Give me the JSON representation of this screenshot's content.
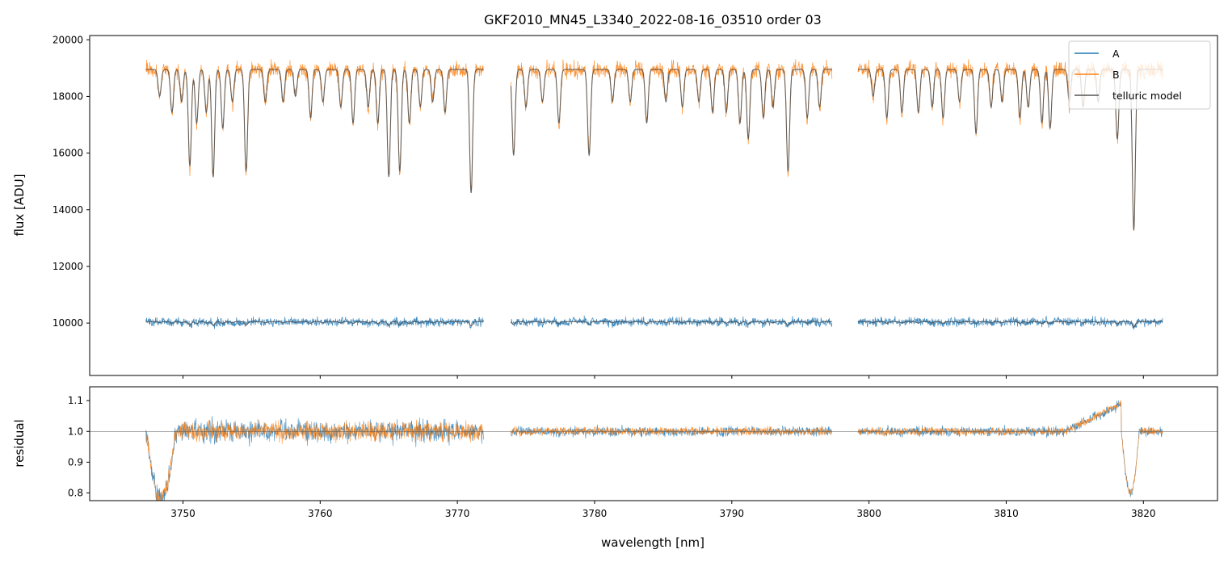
{
  "chart_data": {
    "type": "line",
    "title": "GKF2010_MN45_L3340_2022-08-16_03510  order 03",
    "xlabel": "wavelength [nm]",
    "xlim": [
      3743.2,
      3825.4
    ],
    "xticks": [
      3750,
      3760,
      3770,
      3780,
      3790,
      3800,
      3810,
      3820
    ],
    "xtick_labels": [
      "3750",
      "3760",
      "3770",
      "3780",
      "3790",
      "3800",
      "3810",
      "3820"
    ],
    "colors": {
      "A": "#1f77b4",
      "B": "#ff7f0e",
      "model": "#555555"
    },
    "segments": [
      [
        3747.3,
        3771.9
      ],
      [
        3773.9,
        3797.3
      ],
      [
        3799.2,
        3821.4
      ]
    ],
    "top": {
      "ylabel": "flux [ADU]",
      "ylim": [
        8150,
        20150
      ],
      "yticks": [
        10000,
        12000,
        14000,
        16000,
        18000,
        20000
      ],
      "ytick_labels": [
        "10000",
        "12000",
        "14000",
        "16000",
        "18000",
        "20000"
      ],
      "continuum": {
        "A": 10050,
        "B": 18950
      },
      "telluric_lines": [
        [
          3748.3,
          0.05
        ],
        [
          3749.2,
          0.08
        ],
        [
          3749.9,
          0.06
        ],
        [
          3750.5,
          0.18
        ],
        [
          3751.0,
          0.1
        ],
        [
          3751.7,
          0.08
        ],
        [
          3752.2,
          0.2
        ],
        [
          3752.9,
          0.11
        ],
        [
          3753.6,
          0.06
        ],
        [
          3754.6,
          0.19
        ],
        [
          3756.0,
          0.06
        ],
        [
          3757.3,
          0.06
        ],
        [
          3758.2,
          0.05
        ],
        [
          3759.3,
          0.09
        ],
        [
          3760.2,
          0.06
        ],
        [
          3761.5,
          0.07
        ],
        [
          3762.4,
          0.1
        ],
        [
          3763.5,
          0.07
        ],
        [
          3764.2,
          0.1
        ],
        [
          3765.0,
          0.2
        ],
        [
          3765.8,
          0.19
        ],
        [
          3766.5,
          0.1
        ],
        [
          3767.3,
          0.07
        ],
        [
          3768.2,
          0.06
        ],
        [
          3769.1,
          0.08
        ],
        [
          3771.0,
          0.23
        ],
        [
          3774.1,
          0.16
        ],
        [
          3775.0,
          0.07
        ],
        [
          3776.2,
          0.06
        ],
        [
          3777.4,
          0.1
        ],
        [
          3779.6,
          0.16
        ],
        [
          3781.3,
          0.06
        ],
        [
          3782.6,
          0.06
        ],
        [
          3783.8,
          0.1
        ],
        [
          3785.2,
          0.06
        ],
        [
          3786.4,
          0.07
        ],
        [
          3787.6,
          0.06
        ],
        [
          3788.6,
          0.08
        ],
        [
          3789.6,
          0.08
        ],
        [
          3790.6,
          0.1
        ],
        [
          3791.2,
          0.13
        ],
        [
          3792.3,
          0.09
        ],
        [
          3793.0,
          0.07
        ],
        [
          3794.1,
          0.19
        ],
        [
          3795.5,
          0.09
        ],
        [
          3796.4,
          0.07
        ],
        [
          3800.3,
          0.05
        ],
        [
          3801.3,
          0.09
        ],
        [
          3802.4,
          0.08
        ],
        [
          3803.6,
          0.08
        ],
        [
          3804.6,
          0.07
        ],
        [
          3805.4,
          0.09
        ],
        [
          3806.6,
          0.06
        ],
        [
          3807.8,
          0.12
        ],
        [
          3808.9,
          0.07
        ],
        [
          3809.7,
          0.06
        ],
        [
          3811.0,
          0.09
        ],
        [
          3811.6,
          0.07
        ],
        [
          3812.6,
          0.1
        ],
        [
          3813.2,
          0.11
        ],
        [
          3814.6,
          0.06
        ],
        [
          3815.6,
          0.07
        ],
        [
          3816.7,
          0.06
        ],
        [
          3818.1,
          0.13
        ],
        [
          3819.3,
          0.3
        ]
      ]
    },
    "bottom": {
      "ylabel": "residual",
      "ylim": [
        0.775,
        1.145
      ],
      "yticks": [
        0.8,
        0.9,
        1.0,
        1.1
      ],
      "ytick_labels": [
        "0.8",
        "0.9",
        "1.0",
        "1.1"
      ],
      "reference_line": 1.0,
      "noise_amplitude": [
        [
          3747.3,
          3771.9,
          0.04
        ],
        [
          3773.9,
          3797.3,
          0.018
        ],
        [
          3799.2,
          3821.4,
          0.018
        ]
      ]
    },
    "legend": {
      "location": "upper right",
      "entries": [
        {
          "label": "A",
          "color": "#1f77b4"
        },
        {
          "label": "B",
          "color": "#ff7f0e"
        },
        {
          "label": "telluric model",
          "color": "#555555"
        }
      ]
    }
  }
}
